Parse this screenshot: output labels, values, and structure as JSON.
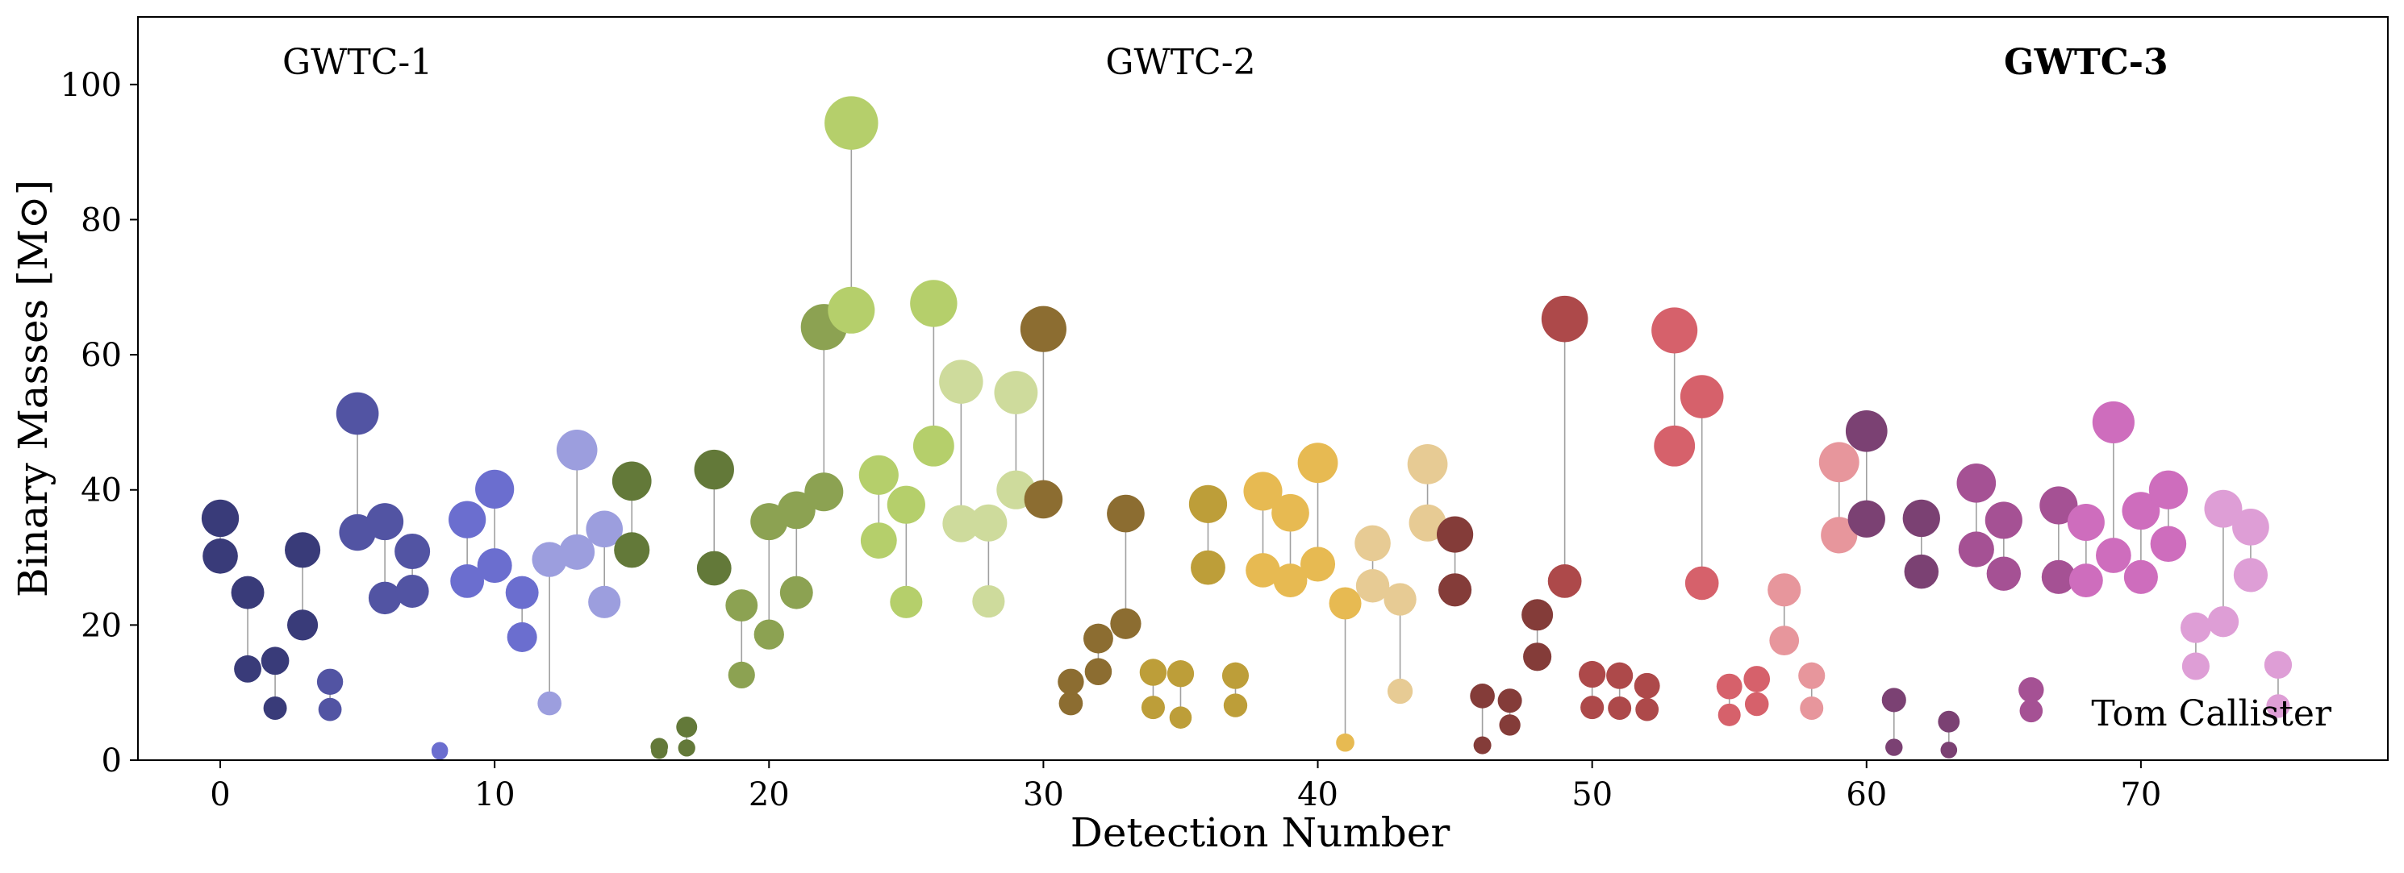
{
  "chart_data": {
    "type": "scatter",
    "xlabel": "Detection Number",
    "ylabel": "Binary Masses [M⊙]",
    "xlim": [
      -3,
      79
    ],
    "ylim": [
      0,
      110
    ],
    "x_ticks": [
      "0",
      "10",
      "20",
      "30",
      "40",
      "50",
      "60",
      "70"
    ],
    "y_ticks": [
      "0",
      "20",
      "40",
      "60",
      "80",
      "100"
    ],
    "catalog_labels": [
      {
        "text": "GWTC-1",
        "x": 5,
        "bold": false
      },
      {
        "text": "GWTC-2",
        "x": 35,
        "bold": false
      },
      {
        "text": "GWTC-3",
        "x": 68,
        "bold": true
      }
    ],
    "credit": "Tom Callister",
    "events": [
      {
        "x": 0,
        "m1": 35.8,
        "m2": 30.2,
        "color": "#393b79"
      },
      {
        "x": 1,
        "m1": 24.8,
        "m2": 13.5,
        "color": "#393b79"
      },
      {
        "x": 2,
        "m1": 14.7,
        "m2": 7.7,
        "color": "#393b79"
      },
      {
        "x": 3,
        "m1": 31.1,
        "m2": 20.0,
        "color": "#393b79"
      },
      {
        "x": 4,
        "m1": 11.6,
        "m2": 7.5,
        "color": "#5254a3"
      },
      {
        "x": 5,
        "m1": 51.3,
        "m2": 33.7,
        "color": "#5254a3"
      },
      {
        "x": 6,
        "m1": 35.3,
        "m2": 24.0,
        "color": "#5254a3"
      },
      {
        "x": 7,
        "m1": 30.9,
        "m2": 25.0,
        "color": "#5254a3"
      },
      {
        "x": 8,
        "m1": 1.46,
        "m2": 1.27,
        "color": "#6b6ecf"
      },
      {
        "x": 9,
        "m1": 35.6,
        "m2": 26.5,
        "color": "#6b6ecf"
      },
      {
        "x": 10,
        "m1": 40.1,
        "m2": 28.8,
        "color": "#6b6ecf"
      },
      {
        "x": 11,
        "m1": 24.8,
        "m2": 18.2,
        "color": "#6b6ecf"
      },
      {
        "x": 12,
        "m1": 29.7,
        "m2": 8.4,
        "color": "#9c9ede"
      },
      {
        "x": 13,
        "m1": 45.9,
        "m2": 30.8,
        "color": "#9c9ede"
      },
      {
        "x": 14,
        "m1": 34.2,
        "m2": 23.4,
        "color": "#9c9ede"
      },
      {
        "x": 15,
        "m1": 41.3,
        "m2": 31.1,
        "color": "#637939"
      },
      {
        "x": 16,
        "m1": 2.0,
        "m2": 1.4,
        "color": "#637939"
      },
      {
        "x": 17,
        "m1": 4.9,
        "m2": 1.8,
        "color": "#637939"
      },
      {
        "x": 18,
        "m1": 43.0,
        "m2": 28.4,
        "color": "#637939"
      },
      {
        "x": 19,
        "m1": 22.9,
        "m2": 12.6,
        "color": "#8ca252"
      },
      {
        "x": 20,
        "m1": 35.3,
        "m2": 18.6,
        "color": "#8ca252"
      },
      {
        "x": 21,
        "m1": 37.0,
        "m2": 24.8,
        "color": "#8ca252"
      },
      {
        "x": 22,
        "m1": 64.1,
        "m2": 39.7,
        "color": "#8ca252"
      },
      {
        "x": 23,
        "m1": 94.3,
        "m2": 66.6,
        "color": "#b5cf6b"
      },
      {
        "x": 24,
        "m1": 42.2,
        "m2": 32.5,
        "color": "#b5cf6b"
      },
      {
        "x": 25,
        "m1": 37.8,
        "m2": 23.4,
        "color": "#b5cf6b"
      },
      {
        "x": 26,
        "m1": 67.6,
        "m2": 46.5,
        "color": "#b5cf6b"
      },
      {
        "x": 27,
        "m1": 56.0,
        "m2": 35.0,
        "color": "#cedb9c"
      },
      {
        "x": 28,
        "m1": 35.1,
        "m2": 23.5,
        "color": "#cedb9c"
      },
      {
        "x": 29,
        "m1": 54.4,
        "m2": 40.0,
        "color": "#cedb9c"
      },
      {
        "x": 30,
        "m1": 63.8,
        "m2": 38.6,
        "color": "#8c6d31"
      },
      {
        "x": 31,
        "m1": 11.6,
        "m2": 8.4,
        "color": "#8c6d31"
      },
      {
        "x": 32,
        "m1": 18.0,
        "m2": 13.1,
        "color": "#8c6d31"
      },
      {
        "x": 33,
        "m1": 36.5,
        "m2": 20.2,
        "color": "#8c6d31"
      },
      {
        "x": 34,
        "m1": 13.0,
        "m2": 7.8,
        "color": "#bd9e39"
      },
      {
        "x": 35,
        "m1": 12.8,
        "m2": 6.3,
        "color": "#bd9e39"
      },
      {
        "x": 36,
        "m1": 37.9,
        "m2": 28.5,
        "color": "#bd9e39"
      },
      {
        "x": 37,
        "m1": 12.5,
        "m2": 8.1,
        "color": "#bd9e39"
      },
      {
        "x": 38,
        "m1": 39.8,
        "m2": 28.1,
        "color": "#e7ba52"
      },
      {
        "x": 39,
        "m1": 36.6,
        "m2": 26.6,
        "color": "#e7ba52"
      },
      {
        "x": 40,
        "m1": 44.0,
        "m2": 29.0,
        "color": "#e7ba52"
      },
      {
        "x": 41,
        "m1": 23.2,
        "m2": 2.6,
        "color": "#e7ba52"
      },
      {
        "x": 42,
        "m1": 32.1,
        "m2": 25.8,
        "color": "#e7cb94"
      },
      {
        "x": 43,
        "m1": 23.8,
        "m2": 10.2,
        "color": "#e7cb94"
      },
      {
        "x": 44,
        "m1": 43.8,
        "m2": 35.1,
        "color": "#e7cb94"
      },
      {
        "x": 45,
        "m1": 33.4,
        "m2": 25.2,
        "color": "#843c39"
      },
      {
        "x": 46,
        "m1": 9.5,
        "m2": 2.2,
        "color": "#843c39"
      },
      {
        "x": 47,
        "m1": 8.8,
        "m2": 5.2,
        "color": "#843c39"
      },
      {
        "x": 48,
        "m1": 21.5,
        "m2": 15.3,
        "color": "#843c39"
      },
      {
        "x": 49,
        "m1": 65.3,
        "m2": 26.5,
        "color": "#ad494a"
      },
      {
        "x": 50,
        "m1": 12.7,
        "m2": 7.8,
        "color": "#ad494a"
      },
      {
        "x": 51,
        "m1": 12.5,
        "m2": 7.7,
        "color": "#ad494a"
      },
      {
        "x": 52,
        "m1": 11.0,
        "m2": 7.5,
        "color": "#ad494a"
      },
      {
        "x": 53,
        "m1": 63.6,
        "m2": 46.5,
        "color": "#d6616b"
      },
      {
        "x": 54,
        "m1": 53.8,
        "m2": 26.2,
        "color": "#d6616b"
      },
      {
        "x": 55,
        "m1": 10.9,
        "m2": 6.7,
        "color": "#d6616b"
      },
      {
        "x": 56,
        "m1": 12.0,
        "m2": 8.3,
        "color": "#d6616b"
      },
      {
        "x": 57,
        "m1": 25.2,
        "m2": 17.7,
        "color": "#e7969c"
      },
      {
        "x": 58,
        "m1": 12.5,
        "m2": 7.7,
        "color": "#e7969c"
      },
      {
        "x": 59,
        "m1": 44.1,
        "m2": 33.3,
        "color": "#e7969c"
      },
      {
        "x": 60,
        "m1": 48.7,
        "m2": 35.7,
        "color": "#7b4173"
      },
      {
        "x": 61,
        "m1": 8.9,
        "m2": 1.9,
        "color": "#7b4173"
      },
      {
        "x": 62,
        "m1": 35.8,
        "m2": 27.9,
        "color": "#7b4173"
      },
      {
        "x": 63,
        "m1": 5.7,
        "m2": 1.5,
        "color": "#7b4173"
      },
      {
        "x": 64,
        "m1": 41.0,
        "m2": 31.2,
        "color": "#a55194"
      },
      {
        "x": 65,
        "m1": 35.5,
        "m2": 27.6,
        "color": "#a55194"
      },
      {
        "x": 66,
        "m1": 10.4,
        "m2": 7.3,
        "color": "#a55194"
      },
      {
        "x": 67,
        "m1": 37.7,
        "m2": 27.1,
        "color": "#a55194"
      },
      {
        "x": 68,
        "m1": 35.2,
        "m2": 26.6,
        "color": "#ce6dbd"
      },
      {
        "x": 69,
        "m1": 50.0,
        "m2": 30.3,
        "color": "#ce6dbd"
      },
      {
        "x": 70,
        "m1": 36.9,
        "m2": 27.1,
        "color": "#ce6dbd"
      },
      {
        "x": 71,
        "m1": 40.0,
        "m2": 32.0,
        "color": "#ce6dbd"
      },
      {
        "x": 72,
        "m1": 19.6,
        "m2": 13.9,
        "color": "#de9ed6"
      },
      {
        "x": 73,
        "m1": 37.2,
        "m2": 20.5,
        "color": "#de9ed6"
      },
      {
        "x": 74,
        "m1": 34.5,
        "m2": 27.4,
        "color": "#de9ed6"
      },
      {
        "x": 75,
        "m1": 14.1,
        "m2": 8.0,
        "color": "#de9ed6"
      }
    ]
  }
}
